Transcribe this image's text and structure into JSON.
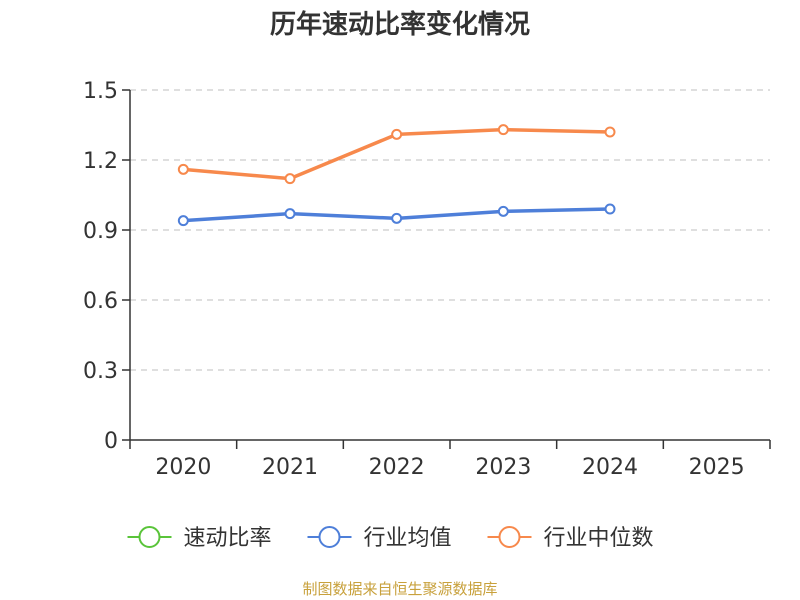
{
  "chart_data": {
    "type": "line",
    "title": "历年速动比率变化情况",
    "categories": [
      "2020",
      "2021",
      "2022",
      "2023",
      "2024",
      "2025"
    ],
    "ylim": [
      0,
      1.5
    ],
    "yticks": [
      "0",
      "0.3",
      "0.6",
      "0.9",
      "1.2",
      "1.5"
    ],
    "ytick_values": [
      0,
      0.3,
      0.6,
      0.9,
      1.2,
      1.5
    ],
    "grid": true,
    "series": [
      {
        "name": "速动比率",
        "color": "#5ac43a",
        "values": [
          null,
          null,
          null,
          null,
          null,
          null
        ]
      },
      {
        "name": "行业均值",
        "color": "#4e7fd9",
        "values": [
          0.94,
          0.97,
          0.95,
          0.98,
          0.99,
          null
        ]
      },
      {
        "name": "行业中位数",
        "color": "#f7894c",
        "values": [
          1.16,
          1.12,
          1.31,
          1.33,
          1.32,
          null
        ]
      }
    ],
    "legend_position": "bottom",
    "source": "制图数据来自恒生聚源数据库"
  }
}
